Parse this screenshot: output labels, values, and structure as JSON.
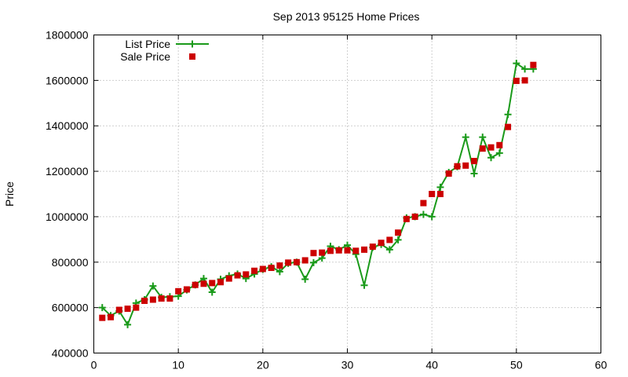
{
  "chart_data": {
    "type": "line",
    "title": "Sep 2013 95125 Home Prices",
    "xlabel": "",
    "ylabel": "Price",
    "xlim": [
      0,
      60
    ],
    "ylim": [
      400000,
      1800000
    ],
    "x_ticks": [
      0,
      10,
      20,
      30,
      40,
      50,
      60
    ],
    "y_ticks": [
      400000,
      600000,
      800000,
      1000000,
      1200000,
      1400000,
      1600000,
      1800000
    ],
    "grid": true,
    "legend_position": "top-left",
    "series": [
      {
        "name": "List Price",
        "style": "line-plus",
        "color": "#1a9a1a",
        "x": [
          1,
          2,
          3,
          4,
          5,
          6,
          7,
          8,
          9,
          10,
          11,
          12,
          13,
          14,
          15,
          16,
          17,
          18,
          19,
          20,
          21,
          22,
          23,
          24,
          25,
          26,
          27,
          28,
          29,
          30,
          31,
          32,
          33,
          34,
          35,
          36,
          37,
          38,
          39,
          40,
          41,
          42,
          43,
          44,
          45,
          46,
          47,
          48,
          49,
          50,
          51,
          52
        ],
        "values": [
          600000,
          565000,
          585000,
          525000,
          620000,
          635000,
          695000,
          645000,
          648000,
          650000,
          678000,
          700000,
          728000,
          668000,
          725000,
          740000,
          748000,
          728000,
          748000,
          768000,
          780000,
          758000,
          795000,
          800000,
          725000,
          798000,
          818000,
          870000,
          855000,
          875000,
          835000,
          698000,
          865000,
          878000,
          855000,
          898000,
          995000,
          1000000,
          1010000,
          1000000,
          1130000,
          1195000,
          1220000,
          1350000,
          1190000,
          1350000,
          1260000,
          1280000,
          1450000,
          1675000,
          1650000,
          1650000
        ]
      },
      {
        "name": "Sale Price",
        "style": "square",
        "color": "#cc0000",
        "x": [
          1,
          2,
          3,
          4,
          5,
          6,
          7,
          8,
          9,
          10,
          11,
          12,
          13,
          14,
          15,
          16,
          17,
          18,
          19,
          20,
          21,
          22,
          23,
          24,
          25,
          26,
          27,
          28,
          29,
          30,
          31,
          32,
          33,
          34,
          35,
          36,
          37,
          38,
          39,
          40,
          41,
          42,
          43,
          44,
          45,
          46,
          47,
          48,
          49,
          50,
          51,
          52
        ],
        "values": [
          555000,
          558000,
          590000,
          595000,
          600000,
          630000,
          635000,
          640000,
          640000,
          672000,
          680000,
          700000,
          705000,
          708000,
          712000,
          728000,
          742000,
          746000,
          762000,
          770000,
          775000,
          785000,
          798000,
          800000,
          808000,
          840000,
          842000,
          850000,
          852000,
          852000,
          850000,
          855000,
          868000,
          885000,
          898000,
          930000,
          990000,
          1000000,
          1060000,
          1100000,
          1100000,
          1190000,
          1222000,
          1225000,
          1245000,
          1300000,
          1305000,
          1315000,
          1395000,
          1598000,
          1600000,
          1668000
        ]
      }
    ]
  }
}
